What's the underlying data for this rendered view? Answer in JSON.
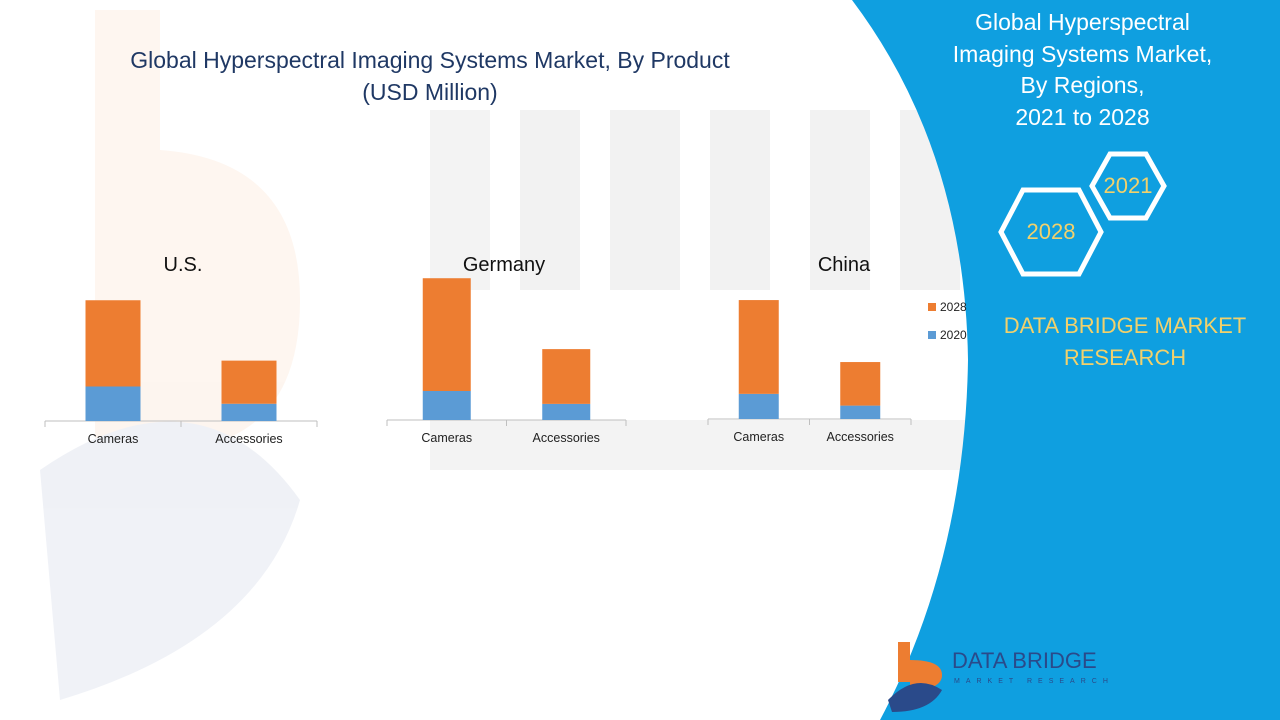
{
  "title": "Global Hyperspectral Imaging Systems Market, By Product (USD Million)",
  "side_panel": {
    "title_lines": [
      "Global Hyperspectral",
      "Imaging Systems Market,",
      "By Regions,",
      "2021 to 2028"
    ],
    "hex_a": "2021",
    "hex_b": "2028",
    "brand_lines": [
      "DATA BRIDGE MARKET",
      "RESEARCH"
    ],
    "logo_text": "DATA BRIDGE",
    "logo_sub": "MARKET RESEARCH"
  },
  "colors": {
    "series_2020": "#5b9bd5",
    "series_2028": "#ed7d31",
    "panel": "#0f9fe0",
    "accent": "#f2d16b"
  },
  "legend": [
    "2028",
    "2020"
  ],
  "chart_data": [
    {
      "type": "bar",
      "stacked": true,
      "title": "U.S.",
      "categories": [
        "Cameras",
        "Accessories"
      ],
      "series": [
        {
          "name": "2020",
          "values": [
            20,
            10
          ]
        },
        {
          "name": "2028",
          "values": [
            50,
            25
          ]
        }
      ],
      "ylim": [
        0,
        80
      ]
    },
    {
      "type": "bar",
      "stacked": true,
      "title": "Germany",
      "categories": [
        "Cameras",
        "Accessories"
      ],
      "series": [
        {
          "name": "2020",
          "values": [
            18,
            10
          ]
        },
        {
          "name": "2028",
          "values": [
            70,
            34
          ]
        }
      ],
      "ylim": [
        0,
        90
      ]
    },
    {
      "type": "bar",
      "stacked": true,
      "title": "China",
      "categories": [
        "Cameras",
        "Accessories"
      ],
      "series": [
        {
          "name": "2020",
          "values": [
            15,
            8
          ]
        },
        {
          "name": "2028",
          "values": [
            56,
            26
          ]
        }
      ],
      "ylim": [
        0,
        80
      ]
    }
  ]
}
